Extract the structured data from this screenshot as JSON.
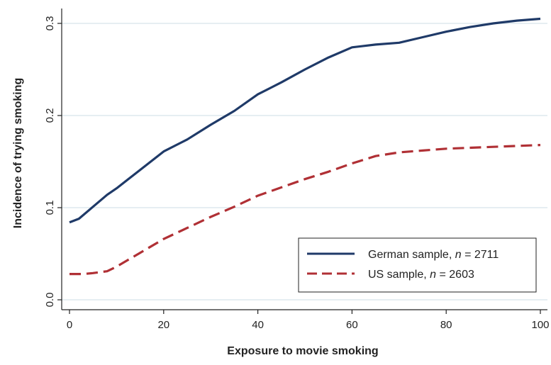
{
  "chart_data": {
    "type": "line",
    "xlabel": "Exposure to movie smoking",
    "ylabel": "Incidence of trying smoking",
    "xlim": [
      0,
      100
    ],
    "ylim": [
      0,
      0.3
    ],
    "x_ticks": [
      "0",
      "20",
      "40",
      "60",
      "80",
      "100"
    ],
    "y_ticks": [
      "0.0",
      "0.1",
      "0.2",
      "0.3"
    ],
    "grid": "horizontal",
    "legend_position": "bottom-right",
    "series": [
      {
        "name": "German sample, n = 2711",
        "legend_main": "German sample, ",
        "legend_n": "n",
        "legend_rest": " = 2711",
        "color": "#1f3a68",
        "style": "solid",
        "x": [
          0,
          2,
          5,
          8,
          10,
          15,
          20,
          25,
          30,
          35,
          40,
          45,
          50,
          55,
          60,
          65,
          70,
          75,
          80,
          85,
          90,
          95,
          100
        ],
        "y": [
          0.084,
          0.088,
          0.101,
          0.114,
          0.121,
          0.141,
          0.161,
          0.174,
          0.19,
          0.205,
          0.223,
          0.236,
          0.25,
          0.263,
          0.274,
          0.277,
          0.279,
          0.285,
          0.291,
          0.296,
          0.3,
          0.303,
          0.305
        ]
      },
      {
        "name": "US sample, n = 2603",
        "legend_main": "US sample, ",
        "legend_n": "n",
        "legend_rest": " = 2603",
        "color": "#b03035",
        "style": "dashed",
        "x": [
          0,
          3,
          5,
          8,
          10,
          15,
          20,
          25,
          30,
          35,
          40,
          45,
          50,
          55,
          60,
          65,
          70,
          75,
          80,
          85,
          90,
          95,
          100
        ],
        "y": [
          0.028,
          0.028,
          0.029,
          0.031,
          0.036,
          0.051,
          0.066,
          0.078,
          0.09,
          0.101,
          0.113,
          0.122,
          0.131,
          0.139,
          0.148,
          0.156,
          0.16,
          0.162,
          0.164,
          0.165,
          0.166,
          0.167,
          0.168
        ]
      }
    ]
  }
}
